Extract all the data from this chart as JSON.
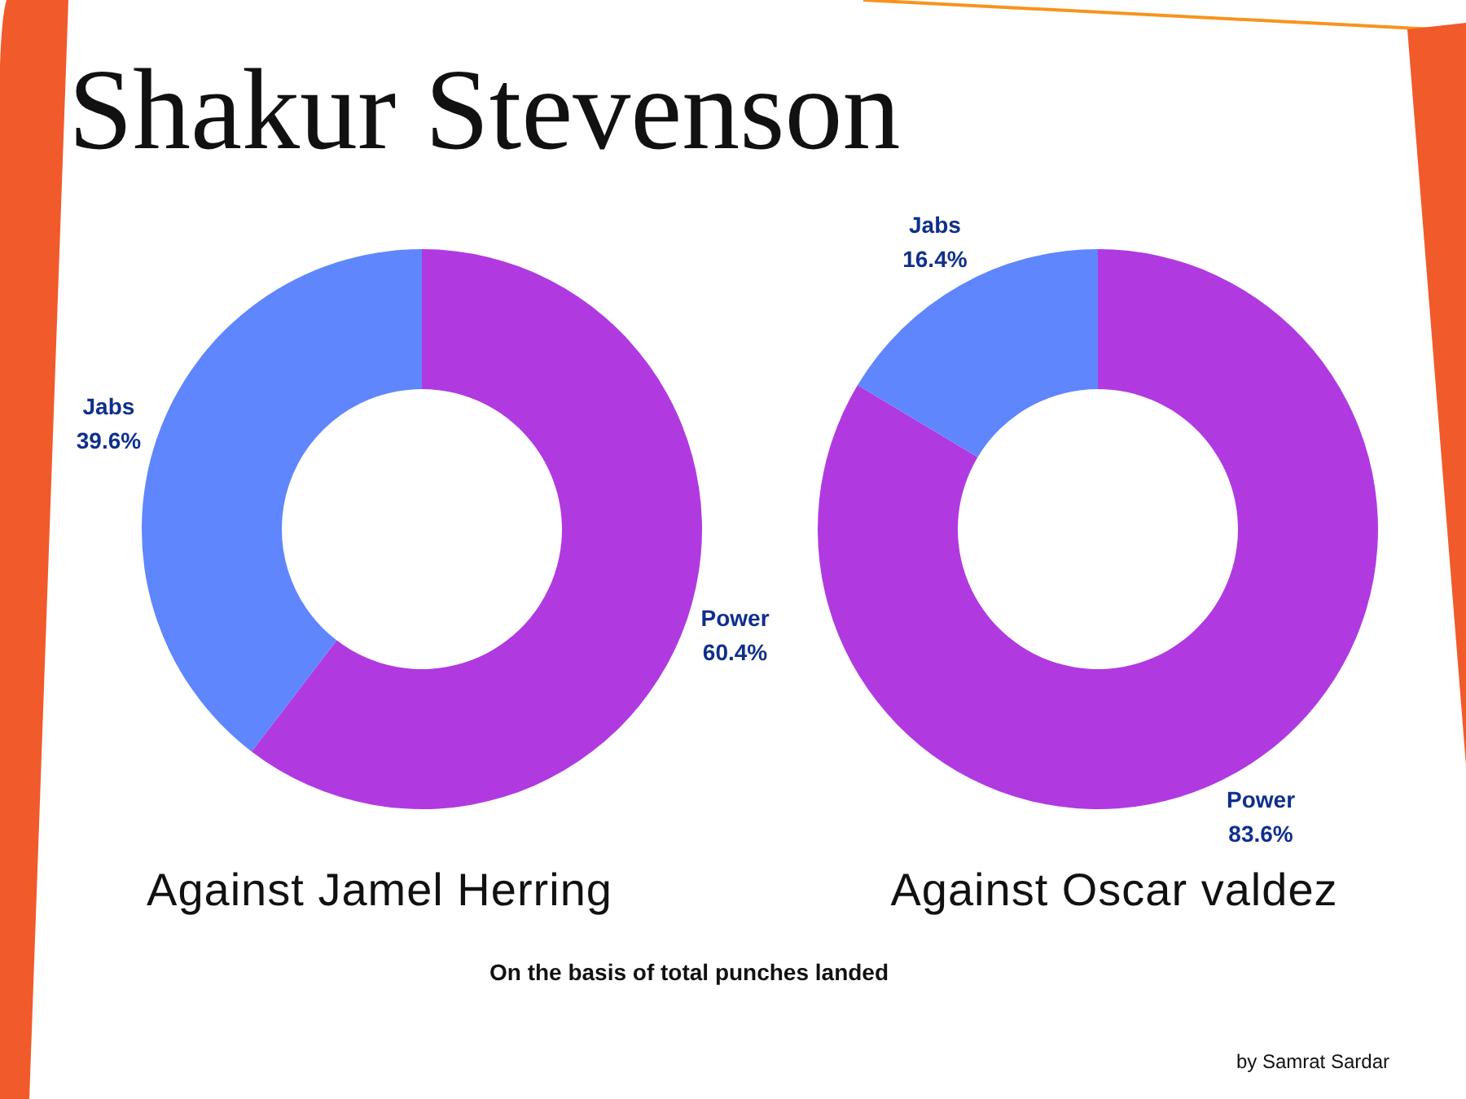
{
  "chart_data": [
    {
      "type": "donut",
      "title": "Shakur Stevenson",
      "xlabel": "Against Jamel Herring",
      "categories": [
        "Power",
        "Jabs"
      ],
      "values": [
        60.4,
        39.6
      ],
      "colors": [
        "#b03ae0",
        "#5f86fd"
      ],
      "value_labels": [
        "60.4%",
        "39.6%"
      ],
      "annotations": [
        "On the basis of total punches landed",
        "by Samrat Sardar"
      ]
    },
    {
      "type": "donut",
      "xlabel": "Against Oscar valdez",
      "categories": [
        "Power",
        "Jabs"
      ],
      "values": [
        83.6,
        16.4
      ],
      "colors": [
        "#b03ae0",
        "#5f86fd"
      ],
      "value_labels": [
        "83.6%",
        "16.4%"
      ]
    }
  ]
}
